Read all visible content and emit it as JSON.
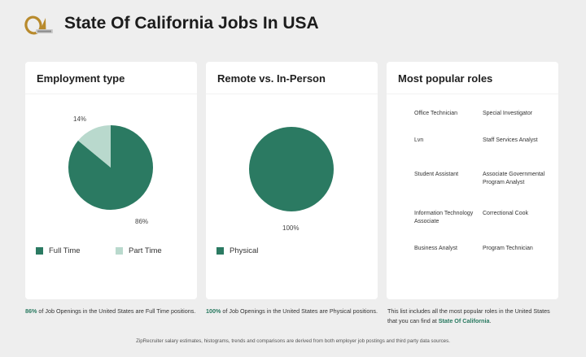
{
  "header": {
    "title": "State Of California Jobs In USA"
  },
  "colors": {
    "primary_green": "#2b7a62",
    "light_green": "#b9d9cd",
    "highlight_text": "#27795f"
  },
  "employment_card": {
    "title": "Employment type",
    "slice_labels": [
      "14%",
      "86%"
    ],
    "legend": [
      {
        "label": "Full Time",
        "color": "#2b7a62",
        "icon": "square-swatch"
      },
      {
        "label": "Part Time",
        "color": "#b9d9cd",
        "icon": "square-swatch"
      }
    ],
    "caption": {
      "highlight": "86%",
      "text": " of Job Openings in the United States are Full Time positions."
    }
  },
  "remote_card": {
    "title": "Remote vs. In-Person",
    "slice_labels": [
      "100%"
    ],
    "legend": [
      {
        "label": "Physical",
        "color": "#2b7a62",
        "icon": "square-swatch"
      }
    ],
    "caption": {
      "highlight": "100%",
      "text": " of Job Openings in the United States are Physical positions."
    }
  },
  "roles_card": {
    "title": "Most popular roles",
    "roles": [
      "Office Technician",
      "Special Investigator",
      "Lvn",
      "Staff Services Analyst",
      "Student Assistant",
      "Associate Governmental Program Analyst",
      "Information Technology Associate",
      "Correctional Cook",
      "Business Analyst",
      "Program Technician"
    ],
    "caption": {
      "text": "This list includes all the most popular roles in the United States that you can find at ",
      "link": "State Of California",
      "end": "."
    }
  },
  "footer": {
    "note": "ZipRecruiter salary estimates, histograms, trends and comparisons are derived from both employer job postings and third party data sources."
  },
  "chart_data": [
    {
      "type": "pie",
      "title": "Employment type",
      "categories": [
        "Full Time",
        "Part Time"
      ],
      "values": [
        86,
        14
      ],
      "colors": [
        "#2b7a62",
        "#b9d9cd"
      ],
      "legend": "bottom"
    },
    {
      "type": "pie",
      "title": "Remote vs. In-Person",
      "categories": [
        "Physical"
      ],
      "values": [
        100
      ],
      "colors": [
        "#2b7a62"
      ],
      "legend": "bottom"
    }
  ]
}
